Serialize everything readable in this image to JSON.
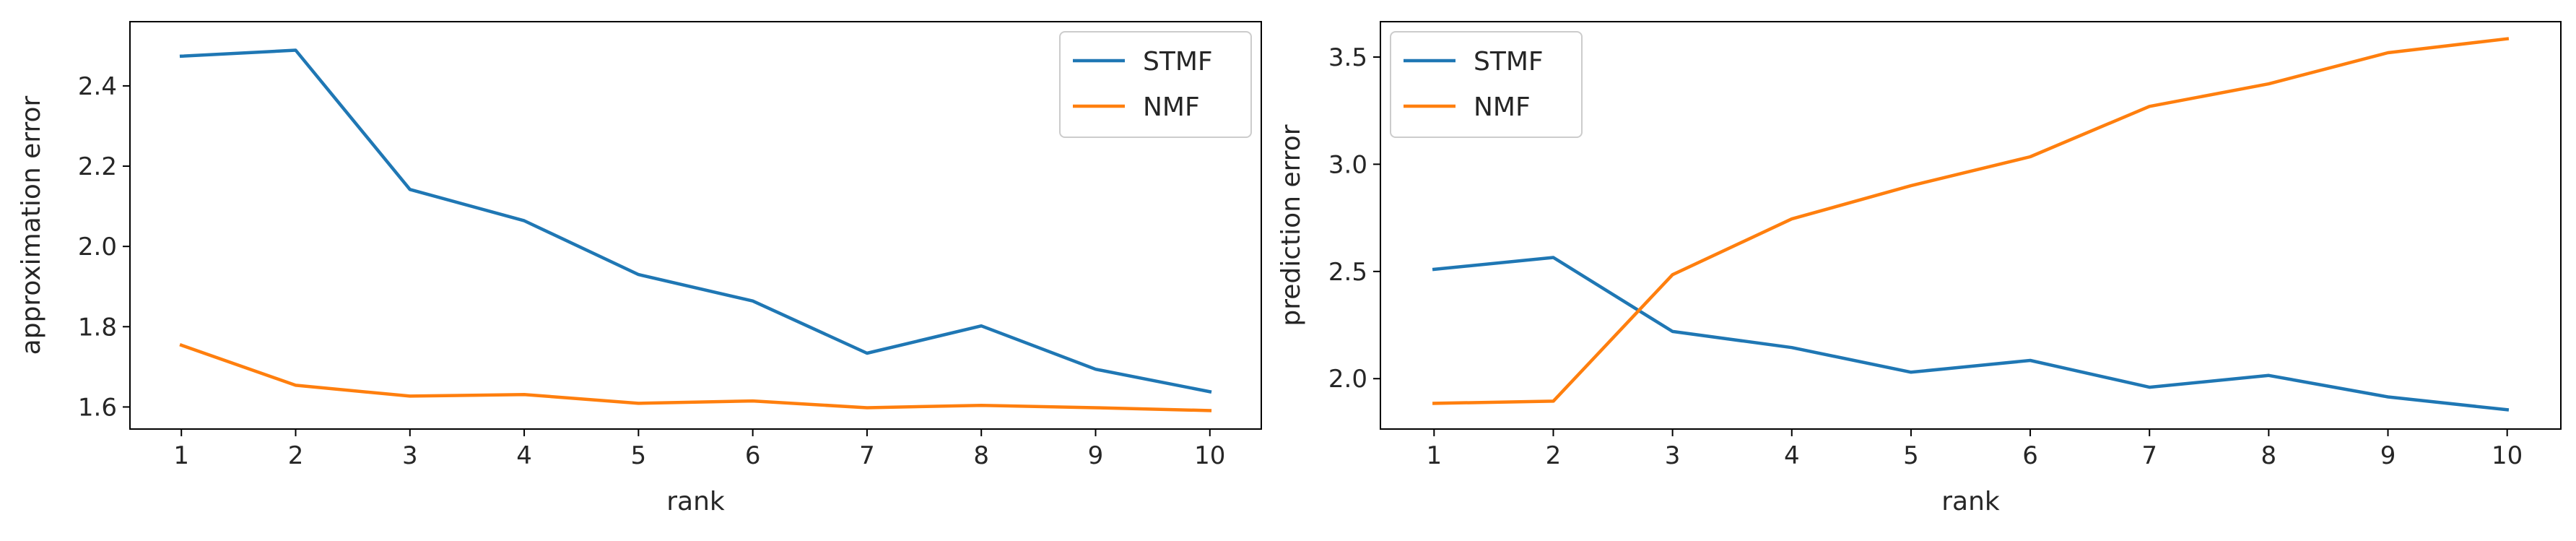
{
  "chart_data": [
    {
      "type": "line",
      "xlabel": "rank",
      "ylabel": "approximation error",
      "x": [
        1,
        2,
        3,
        4,
        5,
        6,
        7,
        8,
        9,
        10
      ],
      "xlim": [
        0.55,
        10.45
      ],
      "ylim": [
        1.545,
        2.56
      ],
      "yticks": [
        1.6,
        1.8,
        2.0,
        2.2,
        2.4
      ],
      "ytick_labels": [
        "1.6",
        "1.8",
        "2.0",
        "2.2",
        "2.4"
      ],
      "grid": false,
      "legend_position": "top-right",
      "series": [
        {
          "name": "STMF",
          "color": "#1f77b4",
          "values": [
            2.474,
            2.489,
            2.142,
            2.064,
            1.93,
            1.864,
            1.734,
            1.802,
            1.694,
            1.638
          ]
        },
        {
          "name": "NMF",
          "color": "#ff7f0e",
          "values": [
            1.754,
            1.654,
            1.627,
            1.631,
            1.609,
            1.615,
            1.598,
            1.604,
            1.598,
            1.591
          ]
        }
      ]
    },
    {
      "type": "line",
      "xlabel": "rank",
      "ylabel": "prediction error",
      "x": [
        1,
        2,
        3,
        4,
        5,
        6,
        7,
        8,
        9,
        10
      ],
      "xlim": [
        0.55,
        10.45
      ],
      "ylim": [
        1.765,
        3.665
      ],
      "yticks": [
        2.0,
        2.5,
        3.0,
        3.5
      ],
      "ytick_labels": [
        "2.0",
        "2.5",
        "3.0",
        "3.5"
      ],
      "grid": false,
      "legend_position": "top-left",
      "series": [
        {
          "name": "STMF",
          "color": "#1f77b4",
          "values": [
            2.51,
            2.565,
            2.22,
            2.145,
            2.03,
            2.085,
            1.96,
            2.015,
            1.915,
            1.855
          ]
        },
        {
          "name": "NMF",
          "color": "#ff7f0e",
          "values": [
            1.885,
            1.895,
            2.485,
            2.745,
            2.9,
            3.035,
            3.27,
            3.375,
            3.52,
            3.585
          ]
        }
      ]
    }
  ]
}
